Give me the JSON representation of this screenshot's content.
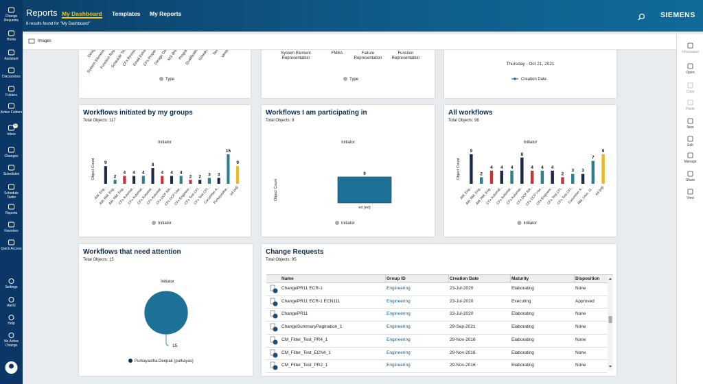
{
  "header": {
    "app": "Reports",
    "tabs": [
      "My Dashboard",
      "Templates",
      "My Reports"
    ],
    "results": "8 results found for \"My Dashboard\"",
    "brand": "SIEMENS"
  },
  "nav": {
    "top": [
      "Change Requests",
      "Home",
      "Assistant",
      "Discussions",
      "Folders",
      "Active Folders",
      "Inbox",
      "Changes",
      "Schedules",
      "Schedule Tasks",
      "Reports",
      "Favorites",
      "Quick Access"
    ],
    "inbox_badge": 6,
    "bottom": [
      "Settings",
      "Alerts",
      "Help",
      "No Active Change"
    ]
  },
  "toolbar": {
    "tab": "Images"
  },
  "rail": [
    "Information",
    "Open",
    "Copy",
    "Paste",
    "New",
    "Edit",
    "Manage",
    "Share",
    "View"
  ],
  "cards": [
    {
      "categories": [
        "Design",
        "System Element...",
        "Function Rep...",
        "Schedule Task",
        "CFx Revision",
        "Email Extract",
        "CFx Property",
        "Design Data",
        "MS Word",
        "Program",
        "Qualification",
        "Schedule",
        "Tas...",
        "Vendor"
      ],
      "legend": "Type"
    },
    {
      "items": [
        {
          "name": "System Element Representation",
          "color": "#0b2f63"
        },
        {
          "name": "FMEA",
          "color": "#e8b923"
        },
        {
          "name": "Failure Representation",
          "color": "#c8313a"
        },
        {
          "name": "Function Representation",
          "color": "#1b2a48"
        }
      ],
      "legend": "Type"
    },
    {
      "date": "Thursday - Oct 21, 2021",
      "legend": "Creation Date"
    },
    {
      "title": "Workflows initiated by my groups",
      "total": "Total Objects: 117",
      "chart_title": "Initiator",
      "y_label": "Object Count",
      "categories": [
        "AW, Eng...",
        "AW, RM, Eng...",
        "AW, RM, Eng...",
        "CFx Automat...",
        "CFx Automat...",
        "CFx Automat...",
        "CFx Automat...",
        "CFx DCP RA...",
        "CFx DCP Use...",
        "CFx Engineer...",
        "CFx Test CFI...",
        "CFx Test CFI...",
        "Cucumber A...",
        "Purkayastha...",
        "ed (ed)"
      ],
      "values": [
        9,
        2,
        4,
        4,
        4,
        8,
        4,
        4,
        4,
        2,
        2,
        3,
        3,
        15,
        9
      ],
      "colors": [
        "#1b2a48",
        "#2a7f8f",
        "#c8313a",
        "#1b2a48",
        "#2a7f8f",
        "#1b2a48",
        "#c8313a",
        "#1b2a48",
        "#2a7f8f",
        "#c8313a",
        "#1b2a48",
        "#2a7f8f",
        "#1b2a48",
        "#2a7f8f",
        "#e8b923"
      ],
      "legend": "Initiator"
    },
    {
      "title": "Workflows I am participating in",
      "total": "Total Objects: 9",
      "chart_title": "Initiator",
      "y_label": "Object Count",
      "categories": [
        "ed (ed)"
      ],
      "values": [
        9
      ],
      "colors": [
        "#1d7197"
      ],
      "legend": "Initiator"
    },
    {
      "title": "All workflows",
      "total": "Total Objects: 96",
      "chart_title": "Initiator",
      "y_label": "Object Count",
      "categories": [
        "AW, Eng...",
        "AW, RM, Eng...",
        "AW, RM, Eng...",
        "CFx Automat...",
        "CFx Automat...",
        "CFx Automat...",
        "CFx DCP RA...",
        "CFx DCP Use...",
        "CFx Engineer...",
        "CFx Test CFI...",
        "CFx Test CFI...",
        "Cucumber A...",
        "RM, User, 11...",
        "ed (ed)"
      ],
      "values": [
        9,
        2,
        4,
        4,
        4,
        8,
        4,
        4,
        4,
        2,
        3,
        3,
        7,
        9
      ],
      "colors": [
        "#1b2a48",
        "#2a7f8f",
        "#c8313a",
        "#1b2a48",
        "#2a7f8f",
        "#1b2a48",
        "#c8313a",
        "#2a7f8f",
        "#1b2a48",
        "#c8313a",
        "#2a7f8f",
        "#1b2a48",
        "#2a7f8f",
        "#e8b923"
      ],
      "legend": "Initiator"
    },
    {
      "title": "Workflows that need attention",
      "total": "Total Objects: 15",
      "chart_title": "Initiator",
      "values": [
        15
      ],
      "color": "#1d7197",
      "legend": "Purkayastha.Deepak (purkayas)"
    },
    {
      "title": "Change Requests",
      "total": "Total Objects: 95",
      "columns": [
        "Name",
        "Group ID",
        "Creation Date",
        "Maturity",
        "Disposition"
      ],
      "rows": [
        [
          "ChangePR11 ECR-1",
          "Engineering",
          "23-Jul-2020",
          "Elaborating",
          "None"
        ],
        [
          "ChangePR11 ECR-1 ECN111",
          "Engineering",
          "23-Jul-2020",
          "Executing",
          "Approved"
        ],
        [
          "ChangePR11",
          "Engineering",
          "23-Jul-2020",
          "Elaborating",
          "None"
        ],
        [
          "ChangeSummaryPagination_1",
          "Engineering",
          "29-Sep-2021",
          "Elaborating",
          "None"
        ],
        [
          "CM_Filter_Test_PR4_1",
          "Engineering",
          "29-Nov-2016",
          "Elaborating",
          "None"
        ],
        [
          "CM_Filter_Test_ECN4_1",
          "Engineering",
          "29-Nov-2016",
          "Elaborating",
          "None"
        ],
        [
          "CM_Filter_Test_PR2_1",
          "Engineering",
          "29-Nov-2016",
          "Elaborating",
          "None"
        ]
      ]
    }
  ]
}
